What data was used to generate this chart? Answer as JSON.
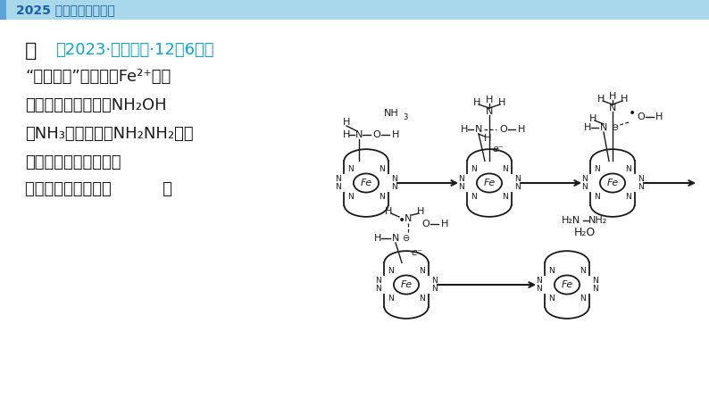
{
  "bg_color": "#ffffff",
  "header_bg_color": "#a8d8ea",
  "header_accent_color": "#5ba3d9",
  "header_text": "2025 高考一轮复习用书",
  "header_text_color": "#1a5fa8",
  "title_black": "例",
  "title_cyan": "（2023·新课标卷·12，6分）",
  "cyan_color": "#00aacc",
  "dark_color": "#1a1a1a",
  "line1": "“胼合成酶”以其中的Fe²⁺配合",
  "line2": "物为催化中心，可将NH₂OH",
  "line3": "与NH₃转化为胼（NH₂NH₂），",
  "line4": "其反应历程如下所示。",
  "line5": "下列说法错误的是（          ）"
}
